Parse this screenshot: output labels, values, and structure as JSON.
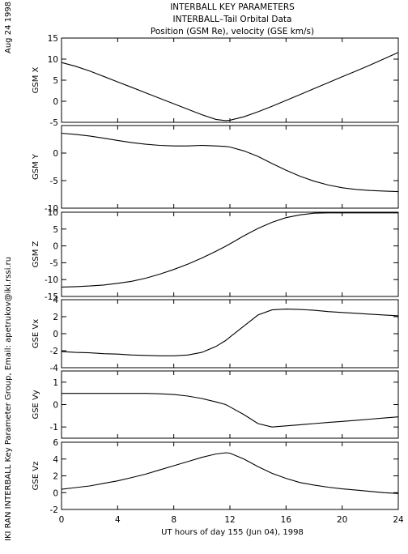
{
  "side_date": "Aug 24 1998",
  "side_credit": "IKI RAN INTERBALL Key Parameter Group, Email: apetrukov@iki.rssi.ru",
  "chart_data": {
    "type": "line",
    "title": "INTERBALL KEY PARAMETERS",
    "subtitle1": "INTERBALL–Tail Orbital Data",
    "subtitle2": "Position (GSM Re), velocity (GSE km/s)",
    "xlabel": "UT hours of day 155 (Jun 04), 1998",
    "xlim": [
      0,
      24
    ],
    "xticks": [
      0,
      4,
      8,
      12,
      16,
      20,
      24
    ],
    "x": [
      0,
      1,
      2,
      3,
      4,
      5,
      6,
      7,
      8,
      9,
      10,
      11,
      11.7,
      12,
      13,
      14,
      15,
      16,
      17,
      18,
      19,
      20,
      21,
      22,
      23,
      24
    ],
    "panels": [
      {
        "ylabel": "GSM X",
        "ylim": [
          -5,
          15
        ],
        "yticks": [
          -5,
          0,
          5,
          10,
          15
        ],
        "values": [
          9.2,
          8.3,
          7.2,
          5.9,
          4.6,
          3.3,
          2.0,
          0.7,
          -0.6,
          -1.9,
          -3.2,
          -4.3,
          -4.6,
          -4.5,
          -3.7,
          -2.5,
          -1.2,
          0.2,
          1.6,
          3.0,
          4.4,
          5.8,
          7.2,
          8.6,
          10.1,
          11.6
        ]
      },
      {
        "ylabel": "GSM Y",
        "ylim": [
          -10,
          5
        ],
        "yticks": [
          -10,
          -5,
          0
        ],
        "values": [
          3.6,
          3.4,
          3.1,
          2.7,
          2.3,
          1.9,
          1.6,
          1.4,
          1.3,
          1.3,
          1.4,
          1.3,
          1.2,
          1.1,
          0.4,
          -0.6,
          -1.9,
          -3.1,
          -4.2,
          -5.1,
          -5.8,
          -6.3,
          -6.6,
          -6.8,
          -6.9,
          -7.0
        ]
      },
      {
        "ylabel": "GSM Z",
        "ylim": [
          -15,
          10
        ],
        "yticks": [
          -15,
          -10,
          -5,
          0,
          5,
          10
        ],
        "values": [
          -12.2,
          -12.1,
          -11.9,
          -11.6,
          -11.1,
          -10.5,
          -9.6,
          -8.4,
          -7.0,
          -5.4,
          -3.6,
          -1.6,
          -0.1,
          0.6,
          3.0,
          5.2,
          7.0,
          8.4,
          9.2,
          9.7,
          9.8,
          9.8,
          9.8,
          9.8,
          9.8,
          9.8
        ]
      },
      {
        "ylabel": "GSE Vx",
        "ylim": [
          -4,
          4
        ],
        "yticks": [
          -4,
          -2,
          0,
          2,
          4
        ],
        "values": [
          -2.1,
          -2.2,
          -2.25,
          -2.35,
          -2.4,
          -2.5,
          -2.55,
          -2.6,
          -2.6,
          -2.5,
          -2.2,
          -1.5,
          -0.8,
          -0.4,
          0.9,
          2.2,
          2.8,
          2.9,
          2.85,
          2.75,
          2.6,
          2.5,
          2.4,
          2.3,
          2.2,
          2.1
        ]
      },
      {
        "ylabel": "GSE Vy",
        "ylim": [
          -1.5,
          1.5
        ],
        "yticks": [
          -1,
          0,
          1
        ],
        "values": [
          0.5,
          0.5,
          0.5,
          0.5,
          0.5,
          0.5,
          0.5,
          0.48,
          0.45,
          0.38,
          0.27,
          0.12,
          0.0,
          -0.1,
          -0.45,
          -0.85,
          -1.0,
          -0.95,
          -0.9,
          -0.85,
          -0.8,
          -0.75,
          -0.7,
          -0.65,
          -0.6,
          -0.55
        ]
      },
      {
        "ylabel": "GSE Vz",
        "ylim": [
          -2,
          6
        ],
        "yticks": [
          -2,
          0,
          2,
          4,
          6
        ],
        "values": [
          0.4,
          0.6,
          0.8,
          1.1,
          1.4,
          1.8,
          2.2,
          2.7,
          3.2,
          3.7,
          4.2,
          4.6,
          4.75,
          4.7,
          4.0,
          3.1,
          2.3,
          1.7,
          1.2,
          0.9,
          0.65,
          0.45,
          0.3,
          0.15,
          0.0,
          -0.1
        ]
      }
    ]
  }
}
